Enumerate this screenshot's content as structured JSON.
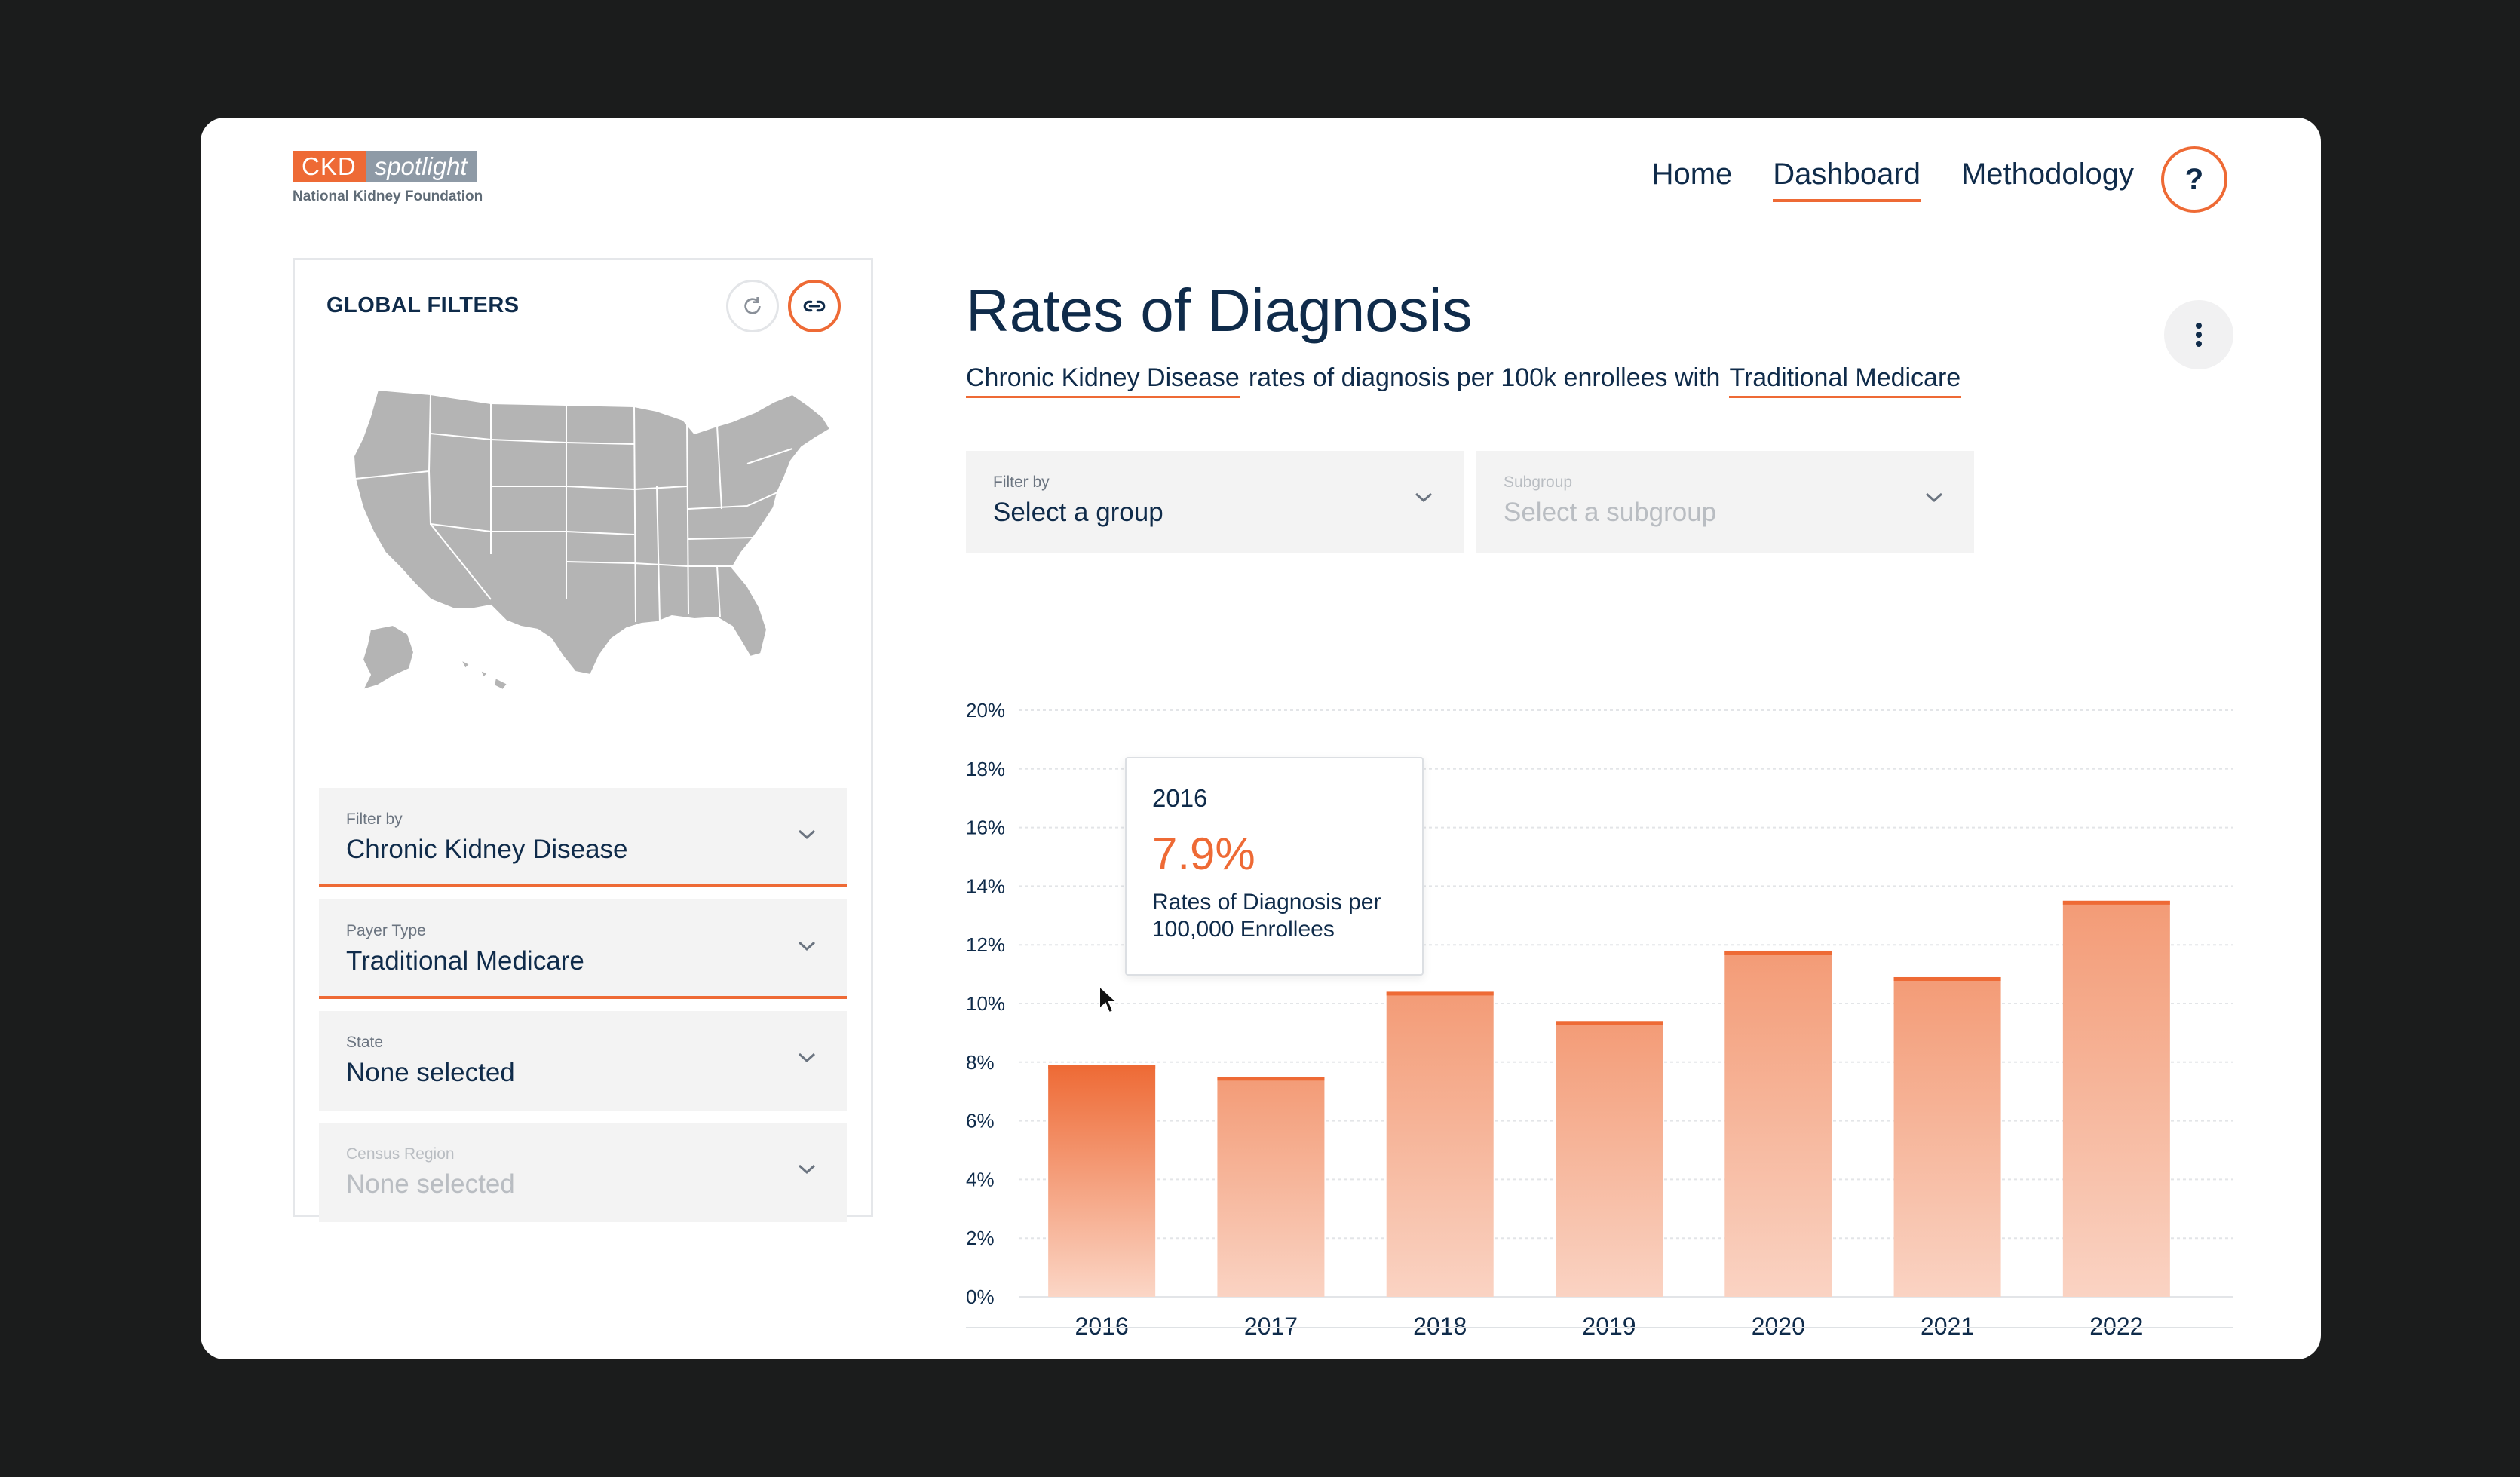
{
  "logo": {
    "brand_left": "CKD",
    "brand_right": "spotlight",
    "org": "National Kidney Foundation"
  },
  "nav": {
    "items": [
      {
        "label": "Home"
      },
      {
        "label": "Dashboard",
        "active": true
      },
      {
        "label": "Methodology"
      }
    ],
    "help_label": "?"
  },
  "filters": {
    "heading": "GLOBAL FILTERS",
    "dropdowns": [
      {
        "label": "Filter by",
        "value": "Chronic Kidney Disease",
        "active": true
      },
      {
        "label": "Payer Type",
        "value": "Traditional Medicare",
        "active": true
      },
      {
        "label": "State",
        "value": "None selected",
        "active": false
      },
      {
        "label": "Census Region",
        "value": "None selected",
        "disabled": true
      }
    ]
  },
  "main": {
    "title": "Rates of Diagnosis",
    "subtitle": {
      "condition": "Chronic Kidney Disease",
      "middle": "rates of diagnosis per 100k enrollees with",
      "payer": "Traditional Medicare"
    },
    "filter_by": {
      "label": "Filter by",
      "value": "Select a group"
    },
    "subgroup": {
      "label": "Subgroup",
      "value": "Select a subgroup"
    }
  },
  "tooltip": {
    "year": "2016",
    "value": "7.9%",
    "desc_line1": "Rates of Diagnosis per",
    "desc_line2": "100,000 Enrollees"
  },
  "colors": {
    "accent": "#ee6a35",
    "navy": "#0f2b4a",
    "bar_light": "#fad3c3"
  },
  "chart_data": {
    "type": "bar",
    "categories": [
      "2016",
      "2017",
      "2018",
      "2019",
      "2020",
      "2021",
      "2022"
    ],
    "values": [
      7.9,
      7.5,
      10.4,
      9.4,
      11.8,
      10.9,
      13.5
    ],
    "ylim": [
      0,
      20
    ],
    "yticks": [
      "0%",
      "2%",
      "4%",
      "6%",
      "8%",
      "10%",
      "12%",
      "14%",
      "16%",
      "18%",
      "20%"
    ],
    "highlighted": "2016",
    "grid": true
  }
}
